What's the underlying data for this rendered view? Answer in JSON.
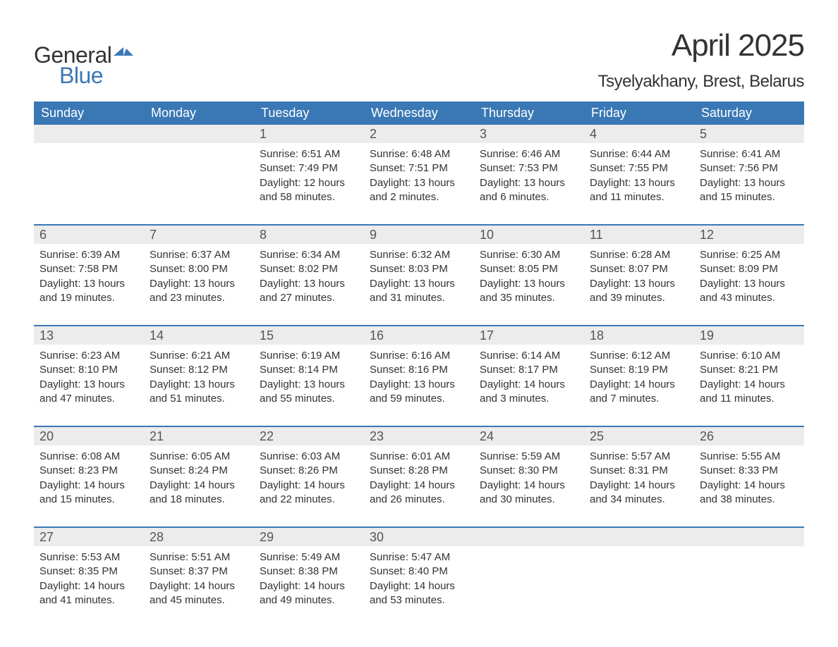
{
  "logo": {
    "word1": "General",
    "word2": "Blue",
    "flag_color": "#3a78b5",
    "text_color": "#333333"
  },
  "title": "April 2025",
  "location": "Tsyelyakhany, Brest, Belarus",
  "colors": {
    "header_bg": "#3a78b5",
    "header_text": "#ffffff",
    "daynum_bg": "#ececec",
    "daynum_text": "#555555",
    "body_text": "#333333",
    "row_border": "#3a78b5",
    "page_bg": "#ffffff"
  },
  "typography": {
    "title_fontsize": 44,
    "location_fontsize": 24,
    "header_fontsize": 18,
    "daynum_fontsize": 18,
    "cell_fontsize": 15,
    "logo_fontsize": 32,
    "font_family": "Arial, Helvetica, sans-serif"
  },
  "days_of_week": [
    "Sunday",
    "Monday",
    "Tuesday",
    "Wednesday",
    "Thursday",
    "Friday",
    "Saturday"
  ],
  "weeks": [
    [
      null,
      null,
      {
        "n": "1",
        "sunrise": "6:51 AM",
        "sunset": "7:49 PM",
        "daylight": "12 hours and 58 minutes."
      },
      {
        "n": "2",
        "sunrise": "6:48 AM",
        "sunset": "7:51 PM",
        "daylight": "13 hours and 2 minutes."
      },
      {
        "n": "3",
        "sunrise": "6:46 AM",
        "sunset": "7:53 PM",
        "daylight": "13 hours and 6 minutes."
      },
      {
        "n": "4",
        "sunrise": "6:44 AM",
        "sunset": "7:55 PM",
        "daylight": "13 hours and 11 minutes."
      },
      {
        "n": "5",
        "sunrise": "6:41 AM",
        "sunset": "7:56 PM",
        "daylight": "13 hours and 15 minutes."
      }
    ],
    [
      {
        "n": "6",
        "sunrise": "6:39 AM",
        "sunset": "7:58 PM",
        "daylight": "13 hours and 19 minutes."
      },
      {
        "n": "7",
        "sunrise": "6:37 AM",
        "sunset": "8:00 PM",
        "daylight": "13 hours and 23 minutes."
      },
      {
        "n": "8",
        "sunrise": "6:34 AM",
        "sunset": "8:02 PM",
        "daylight": "13 hours and 27 minutes."
      },
      {
        "n": "9",
        "sunrise": "6:32 AM",
        "sunset": "8:03 PM",
        "daylight": "13 hours and 31 minutes."
      },
      {
        "n": "10",
        "sunrise": "6:30 AM",
        "sunset": "8:05 PM",
        "daylight": "13 hours and 35 minutes."
      },
      {
        "n": "11",
        "sunrise": "6:28 AM",
        "sunset": "8:07 PM",
        "daylight": "13 hours and 39 minutes."
      },
      {
        "n": "12",
        "sunrise": "6:25 AM",
        "sunset": "8:09 PM",
        "daylight": "13 hours and 43 minutes."
      }
    ],
    [
      {
        "n": "13",
        "sunrise": "6:23 AM",
        "sunset": "8:10 PM",
        "daylight": "13 hours and 47 minutes."
      },
      {
        "n": "14",
        "sunrise": "6:21 AM",
        "sunset": "8:12 PM",
        "daylight": "13 hours and 51 minutes."
      },
      {
        "n": "15",
        "sunrise": "6:19 AM",
        "sunset": "8:14 PM",
        "daylight": "13 hours and 55 minutes."
      },
      {
        "n": "16",
        "sunrise": "6:16 AM",
        "sunset": "8:16 PM",
        "daylight": "13 hours and 59 minutes."
      },
      {
        "n": "17",
        "sunrise": "6:14 AM",
        "sunset": "8:17 PM",
        "daylight": "14 hours and 3 minutes."
      },
      {
        "n": "18",
        "sunrise": "6:12 AM",
        "sunset": "8:19 PM",
        "daylight": "14 hours and 7 minutes."
      },
      {
        "n": "19",
        "sunrise": "6:10 AM",
        "sunset": "8:21 PM",
        "daylight": "14 hours and 11 minutes."
      }
    ],
    [
      {
        "n": "20",
        "sunrise": "6:08 AM",
        "sunset": "8:23 PM",
        "daylight": "14 hours and 15 minutes."
      },
      {
        "n": "21",
        "sunrise": "6:05 AM",
        "sunset": "8:24 PM",
        "daylight": "14 hours and 18 minutes."
      },
      {
        "n": "22",
        "sunrise": "6:03 AM",
        "sunset": "8:26 PM",
        "daylight": "14 hours and 22 minutes."
      },
      {
        "n": "23",
        "sunrise": "6:01 AM",
        "sunset": "8:28 PM",
        "daylight": "14 hours and 26 minutes."
      },
      {
        "n": "24",
        "sunrise": "5:59 AM",
        "sunset": "8:30 PM",
        "daylight": "14 hours and 30 minutes."
      },
      {
        "n": "25",
        "sunrise": "5:57 AM",
        "sunset": "8:31 PM",
        "daylight": "14 hours and 34 minutes."
      },
      {
        "n": "26",
        "sunrise": "5:55 AM",
        "sunset": "8:33 PM",
        "daylight": "14 hours and 38 minutes."
      }
    ],
    [
      {
        "n": "27",
        "sunrise": "5:53 AM",
        "sunset": "8:35 PM",
        "daylight": "14 hours and 41 minutes."
      },
      {
        "n": "28",
        "sunrise": "5:51 AM",
        "sunset": "8:37 PM",
        "daylight": "14 hours and 45 minutes."
      },
      {
        "n": "29",
        "sunrise": "5:49 AM",
        "sunset": "8:38 PM",
        "daylight": "14 hours and 49 minutes."
      },
      {
        "n": "30",
        "sunrise": "5:47 AM",
        "sunset": "8:40 PM",
        "daylight": "14 hours and 53 minutes."
      },
      null,
      null,
      null
    ]
  ],
  "labels": {
    "sunrise": "Sunrise:",
    "sunset": "Sunset:",
    "daylight": "Daylight:"
  }
}
